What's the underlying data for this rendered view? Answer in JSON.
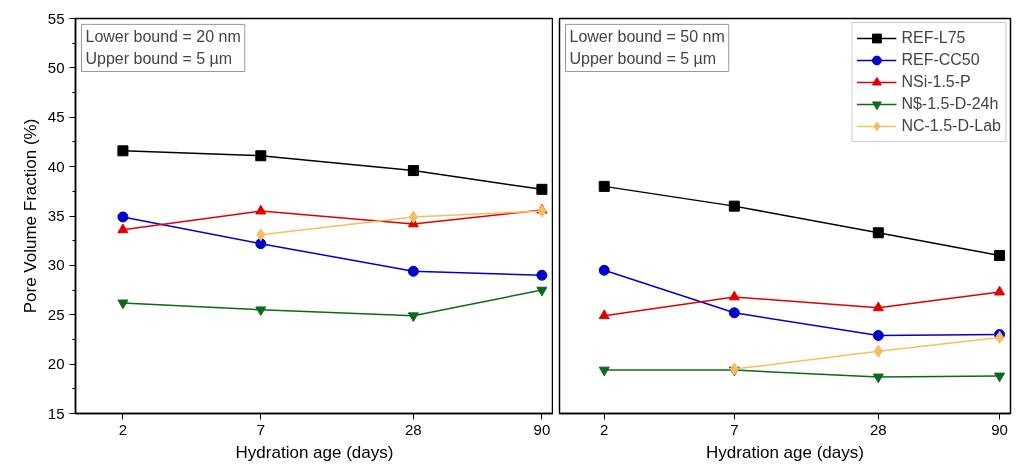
{
  "chart_data": [
    {
      "type": "line",
      "xlabel": "Hydration age (days)",
      "ylabel": "Pore Volume Fraction (%)",
      "log": "x",
      "x": [
        2,
        7,
        28,
        90
      ],
      "xlim": [
        1.3,
        100
      ],
      "xticks": [
        2,
        7,
        28,
        90
      ],
      "ylim": [
        15,
        55
      ],
      "yticks": [
        15,
        20,
        25,
        30,
        35,
        40,
        45,
        50,
        55
      ],
      "grid": false,
      "legend": false,
      "annotations": [
        "Lower bound = 20 nm",
        "Upper bound = 5 µm"
      ],
      "series": [
        {
          "color": "#000000",
          "marker": "square",
          "values": [
            41.6,
            41.1,
            39.6,
            37.7
          ]
        },
        {
          "color": "#0000cc",
          "marker": "circle",
          "values": [
            34.9,
            32.2,
            29.4,
            29.0
          ]
        },
        {
          "color": "#e00000",
          "marker": "triangle",
          "values": [
            33.6,
            35.5,
            34.2,
            35.6
          ]
        },
        {
          "color": "#0a6a1a",
          "marker": "triangle",
          "values": [
            26.2,
            25.5,
            24.9,
            27.5
          ]
        },
        {
          "color": "#f7bd5c",
          "marker": "diamond",
          "values": [
            null,
            33.1,
            34.9,
            35.5
          ]
        }
      ]
    },
    {
      "type": "line",
      "xlabel": "Hydration age (days)",
      "log": "x",
      "x": [
        2,
        7,
        28,
        90
      ],
      "xlim": [
        1.3,
        100
      ],
      "xticks": [
        2,
        7,
        28,
        90
      ],
      "ylim": [
        15,
        55
      ],
      "yticks": [
        15,
        20,
        25,
        30,
        35,
        40,
        45,
        50,
        55
      ],
      "tick_labels": "x",
      "grid": false,
      "legend": "top right",
      "annotations": [
        "Lower bound = 50 nm",
        "Upper bound = 5 µm"
      ],
      "series": [
        {
          "name": "REF-L75",
          "color": "#000000",
          "marker": "square",
          "values": [
            38.0,
            36.0,
            33.3,
            31.0
          ]
        },
        {
          "name": "REF-CC50",
          "color": "#0000cc",
          "marker": "circle",
          "values": [
            29.5,
            25.2,
            22.9,
            23.0
          ]
        },
        {
          "name": "NSi-1.5-P",
          "color": "#e00000",
          "marker": "triangle",
          "values": [
            24.9,
            26.8,
            25.7,
            27.3
          ]
        },
        {
          "name": "N$-1.5-D-24h",
          "color": "#0a6a1a",
          "marker": "triangle",
          "values": [
            19.4,
            19.4,
            18.7,
            18.8
          ]
        },
        {
          "name": "NC-1.5-D-Lab",
          "color": "#f7bd5c",
          "marker": "diamond",
          "values": [
            null,
            19.5,
            21.3,
            22.7
          ]
        }
      ]
    }
  ]
}
